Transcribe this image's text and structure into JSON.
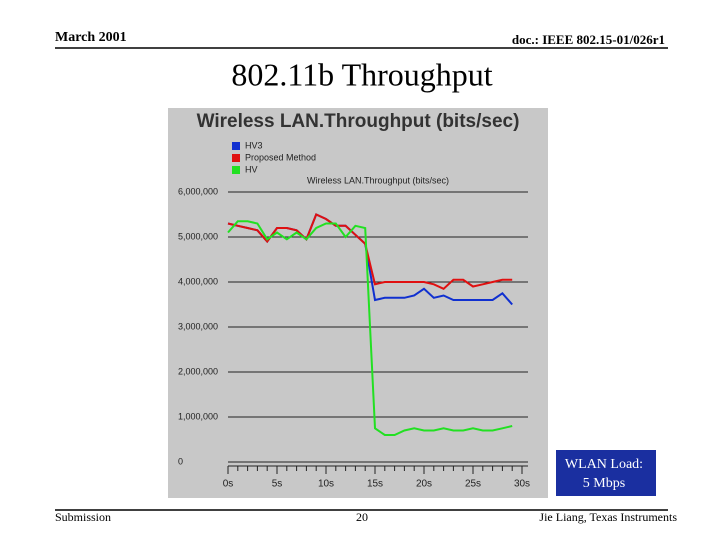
{
  "slide": {
    "date": "March 2001",
    "doc": "doc.: IEEE 802.15-01/026r1",
    "heading": "802.11b Throughput",
    "footer_left": "Submission",
    "page": "20",
    "footer_right": "Jie Liang, Texas Instruments",
    "annotation": [
      "WLAN Load:",
      "5 Mbps"
    ]
  },
  "chart_data": {
    "type": "line",
    "title": "Wireless LAN.Throughput (bits/sec)",
    "subtitle": "Wireless LAN.Throughput (bits/sec)",
    "x": [
      0,
      1,
      2,
      3,
      4,
      5,
      6,
      7,
      8,
      9,
      10,
      11,
      12,
      13,
      14,
      15,
      16,
      17,
      18,
      19,
      20,
      21,
      22,
      23,
      24,
      25,
      26,
      27,
      28,
      29
    ],
    "series": [
      {
        "name": "HV3",
        "color": "#1030d0",
        "values": [
          5300000,
          5250000,
          5200000,
          5150000,
          4900000,
          5200000,
          5200000,
          5150000,
          4950000,
          5500000,
          5400000,
          5250000,
          5250000,
          5050000,
          4850000,
          3600000,
          3650000,
          3650000,
          3650000,
          3700000,
          3850000,
          3650000,
          3700000,
          3600000,
          3600000,
          3600000,
          3600000,
          3600000,
          3750000,
          3500000
        ]
      },
      {
        "name": "Proposed Method",
        "color": "#e01010",
        "values": [
          5300000,
          5250000,
          5200000,
          5150000,
          4900000,
          5200000,
          5200000,
          5150000,
          4950000,
          5500000,
          5400000,
          5250000,
          5250000,
          5050000,
          4850000,
          3950000,
          4000000,
          4000000,
          4000000,
          4000000,
          4000000,
          3950000,
          3850000,
          4050000,
          4050000,
          3900000,
          3950000,
          4000000,
          4050000,
          4050000
        ]
      },
      {
        "name": "HV",
        "color": "#22e022",
        "values": [
          5100000,
          5350000,
          5350000,
          5300000,
          4950000,
          5100000,
          4950000,
          5100000,
          4950000,
          5200000,
          5300000,
          5300000,
          5000000,
          5250000,
          5200000,
          750000,
          600000,
          600000,
          700000,
          750000,
          700000,
          700000,
          750000,
          700000,
          700000,
          750000,
          700000,
          700000,
          750000,
          800000
        ]
      }
    ],
    "xlim": [
      0,
      30
    ],
    "xticks": [
      {
        "value": 0,
        "label": "0s"
      },
      {
        "value": 5,
        "label": "5s"
      },
      {
        "value": 10,
        "label": "10s"
      },
      {
        "value": 15,
        "label": "15s"
      },
      {
        "value": 20,
        "label": "20s"
      },
      {
        "value": 25,
        "label": "25s"
      },
      {
        "value": 30,
        "label": "30s"
      }
    ],
    "ylim": [
      0,
      6000000
    ],
    "yticks": [
      0,
      {
        "value": 1000000,
        "label": "1,000,000"
      },
      {
        "value": 2000000,
        "label": "2,000,000"
      },
      {
        "value": 3000000,
        "label": "3,000,000"
      },
      {
        "value": 4000000,
        "label": "4,000,000"
      },
      {
        "value": 5000000,
        "label": "5,000,000"
      },
      {
        "value": 6000000,
        "label": "6,000,000"
      }
    ],
    "grid": true,
    "legend": "top-left"
  }
}
